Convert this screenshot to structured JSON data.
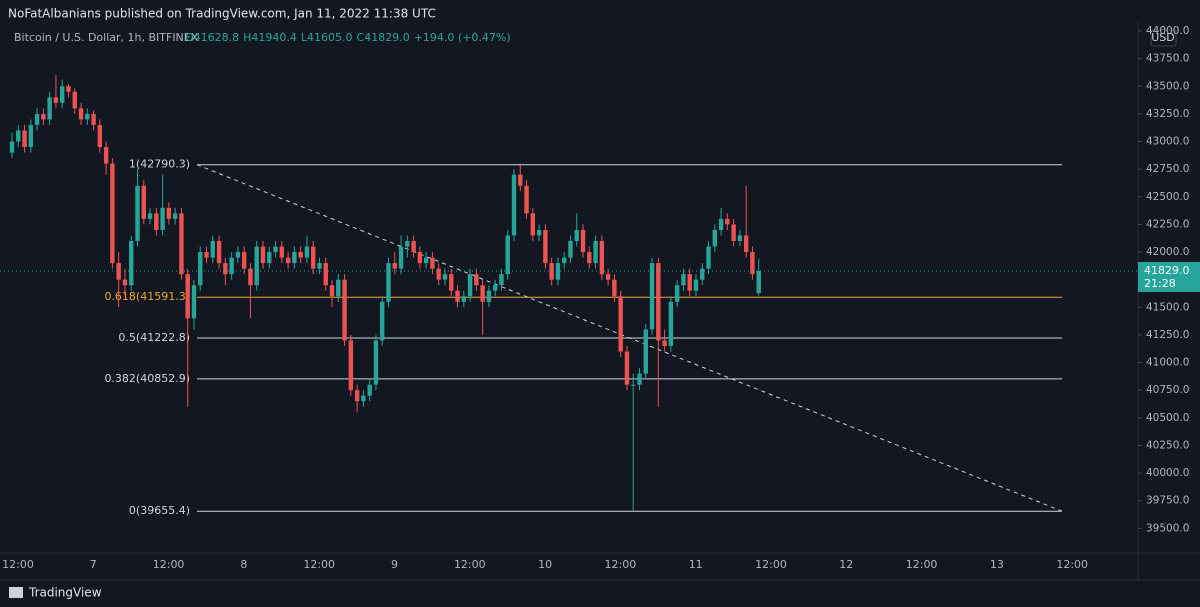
{
  "header": {
    "publisher": "NoFatAlbanians published on TradingView.com, Jan 11, 2022 11:38 UTC",
    "brand": "TradingView"
  },
  "chart_data": {
    "type": "candlestick",
    "symbol": "Bitcoin / U.S. Dollar, 1h, BITFINEX",
    "ohlc_legend": [
      "O41628.8",
      "H41940.4",
      "L41605.0",
      "C41829.0",
      "+194.0 (+0.47%)"
    ],
    "currency": "USD",
    "last_price": {
      "value": 41829,
      "label": "41829.0"
    },
    "countdown": "21:28",
    "up_color": "#26a69a",
    "down_color": "#ef5350",
    "ylim": [
      39250,
      44000
    ],
    "yticks": [
      {
        "value": 39500,
        "label": "39500.0"
      },
      {
        "value": 39750,
        "label": "39750.0"
      },
      {
        "value": 40000,
        "label": "40000.0"
      },
      {
        "value": 40250,
        "label": "40250.0"
      },
      {
        "value": 40500,
        "label": "40500.0"
      },
      {
        "value": 40750,
        "label": "40750.0"
      },
      {
        "value": 41000,
        "label": "41000.0"
      },
      {
        "value": 41250,
        "label": "41250.0"
      },
      {
        "value": 41500,
        "label": "41500.0"
      },
      {
        "value": 41750,
        "label": "41750.0"
      },
      {
        "value": 42000,
        "label": "42000.0"
      },
      {
        "value": 42250,
        "label": "42250.0"
      },
      {
        "value": 42500,
        "label": "42500.0"
      },
      {
        "value": 42750,
        "label": "42750.0"
      },
      {
        "value": 43000,
        "label": "43000.0"
      },
      {
        "value": 43250,
        "label": "43250.0"
      },
      {
        "value": 43500,
        "label": "43500.0"
      },
      {
        "value": 43750,
        "label": "43750.0"
      },
      {
        "value": 44000,
        "label": "44000.0"
      }
    ],
    "xticks": [
      "12:00",
      "7",
      "12:00",
      "8",
      "12:00",
      "9",
      "12:00",
      "10",
      "12:00",
      "11",
      "12:00",
      "12",
      "12:00",
      "13",
      "12:00"
    ],
    "fib_levels": [
      {
        "label": "1(42790.3)",
        "value": 42790.3,
        "color": "#d1d4dc"
      },
      {
        "label": "0.618(41591.3)",
        "value": 41591.3,
        "color": "#f0a830"
      },
      {
        "label": "0.5(41222.8)",
        "value": 41222.8,
        "color": "#d1d4dc"
      },
      {
        "label": "0.382(40852.9)",
        "value": 40852.9,
        "color": "#d1d4dc"
      },
      {
        "label": "0(39655.4)",
        "value": 39655.4,
        "color": "#d1d4dc"
      }
    ],
    "candles": [
      [
        42900,
        43080,
        42850,
        43000
      ],
      [
        43000,
        43150,
        42950,
        43100
      ],
      [
        43100,
        43150,
        42900,
        42950
      ],
      [
        42950,
        43200,
        42900,
        43150
      ],
      [
        43150,
        43300,
        43100,
        43250
      ],
      [
        43250,
        43300,
        43150,
        43200
      ],
      [
        43200,
        43450,
        43150,
        43400
      ],
      [
        43400,
        43600,
        43300,
        43350
      ],
      [
        43350,
        43560,
        43300,
        43500
      ],
      [
        43500,
        43520,
        43400,
        43450
      ],
      [
        43450,
        43480,
        43250,
        43300
      ],
      [
        43300,
        43350,
        43150,
        43200
      ],
      [
        43200,
        43300,
        43150,
        43250
      ],
      [
        43250,
        43280,
        43100,
        43150
      ],
      [
        43150,
        43200,
        42900,
        42950
      ],
      [
        42950,
        43000,
        42700,
        42800
      ],
      [
        42800,
        42850,
        41850,
        41900
      ],
      [
        41900,
        42000,
        41500,
        41750
      ],
      [
        41750,
        41850,
        41600,
        41700
      ],
      [
        41700,
        42150,
        41650,
        42100
      ],
      [
        42100,
        42750,
        42050,
        42600
      ],
      [
        42600,
        42650,
        42250,
        42300
      ],
      [
        42300,
        42400,
        42250,
        42350
      ],
      [
        42350,
        42400,
        42150,
        42200
      ],
      [
        42200,
        42700,
        42150,
        42400
      ],
      [
        42400,
        42450,
        42250,
        42300
      ],
      [
        42300,
        42400,
        42250,
        42350
      ],
      [
        42350,
        42400,
        41750,
        41800
      ],
      [
        41800,
        41850,
        40600,
        41400
      ],
      [
        41400,
        41750,
        41300,
        41700
      ],
      [
        41700,
        42050,
        41650,
        42000
      ],
      [
        42000,
        42050,
        41900,
        41950
      ],
      [
        41950,
        42150,
        41900,
        42100
      ],
      [
        42100,
        42150,
        41850,
        41900
      ],
      [
        41900,
        41950,
        41700,
        41800
      ],
      [
        41800,
        42000,
        41750,
        41950
      ],
      [
        41950,
        42050,
        41900,
        42000
      ],
      [
        42000,
        42050,
        41800,
        41850
      ],
      [
        41850,
        41900,
        41400,
        41700
      ],
      [
        41700,
        42100,
        41650,
        42050
      ],
      [
        42050,
        42100,
        41850,
        41900
      ],
      [
        41900,
        42050,
        41850,
        42000
      ],
      [
        42000,
        42100,
        41950,
        42050
      ],
      [
        42050,
        42100,
        41900,
        41950
      ],
      [
        41950,
        42000,
        41850,
        41900
      ],
      [
        41900,
        42050,
        41850,
        42000
      ],
      [
        42000,
        42050,
        41900,
        41950
      ],
      [
        41950,
        42150,
        41900,
        42050
      ],
      [
        42050,
        42100,
        41800,
        41850
      ],
      [
        41850,
        41950,
        41800,
        41900
      ],
      [
        41900,
        41950,
        41650,
        41700
      ],
      [
        41700,
        41750,
        41500,
        41600
      ],
      [
        41600,
        41800,
        41550,
        41750
      ],
      [
        41750,
        41800,
        41150,
        41200
      ],
      [
        41200,
        41250,
        40700,
        40750
      ],
      [
        40750,
        40800,
        40550,
        40650
      ],
      [
        40650,
        40750,
        40600,
        40700
      ],
      [
        40700,
        40850,
        40650,
        40800
      ],
      [
        40800,
        41250,
        40750,
        41200
      ],
      [
        41200,
        41600,
        41150,
        41550
      ],
      [
        41550,
        41950,
        41500,
        41900
      ],
      [
        41900,
        42000,
        41800,
        41850
      ],
      [
        41850,
        42150,
        41800,
        42050
      ],
      [
        42050,
        42150,
        41950,
        42100
      ],
      [
        42100,
        42150,
        41950,
        42000
      ],
      [
        42000,
        42050,
        41850,
        41900
      ],
      [
        41900,
        42000,
        41850,
        41950
      ],
      [
        41950,
        42000,
        41800,
        41850
      ],
      [
        41850,
        41900,
        41700,
        41750
      ],
      [
        41750,
        41850,
        41700,
        41800
      ],
      [
        41800,
        41850,
        41600,
        41650
      ],
      [
        41650,
        41700,
        41500,
        41550
      ],
      [
        41550,
        41650,
        41500,
        41600
      ],
      [
        41600,
        41850,
        41550,
        41800
      ],
      [
        41800,
        41850,
        41650,
        41700
      ],
      [
        41700,
        41750,
        41250,
        41550
      ],
      [
        41550,
        41700,
        41500,
        41650
      ],
      [
        41650,
        41750,
        41600,
        41700
      ],
      [
        41700,
        41850,
        41650,
        41800
      ],
      [
        41800,
        42200,
        41750,
        42150
      ],
      [
        42150,
        42750,
        42100,
        42700
      ],
      [
        42700,
        42800,
        42550,
        42600
      ],
      [
        42600,
        42650,
        42300,
        42350
      ],
      [
        42350,
        42400,
        42100,
        42150
      ],
      [
        42150,
        42250,
        42100,
        42200
      ],
      [
        42200,
        42250,
        41850,
        41900
      ],
      [
        41900,
        41950,
        41700,
        41750
      ],
      [
        41750,
        41950,
        41700,
        41900
      ],
      [
        41900,
        42000,
        41850,
        41950
      ],
      [
        41950,
        42150,
        41900,
        42100
      ],
      [
        42100,
        42350,
        42050,
        42200
      ],
      [
        42200,
        42250,
        41950,
        42000
      ],
      [
        42000,
        42050,
        41850,
        41900
      ],
      [
        41900,
        42150,
        41850,
        42100
      ],
      [
        42100,
        42150,
        41750,
        41800
      ],
      [
        41800,
        41850,
        41700,
        41750
      ],
      [
        41750,
        41800,
        41550,
        41600
      ],
      [
        41600,
        41650,
        41050,
        41100
      ],
      [
        41100,
        41150,
        40750,
        40800
      ],
      [
        40800,
        40900,
        39660,
        40800
      ],
      [
        40800,
        40950,
        40750,
        40900
      ],
      [
        40900,
        41350,
        40850,
        41300
      ],
      [
        41300,
        41950,
        41250,
        41900
      ],
      [
        41900,
        41950,
        40600,
        41200
      ],
      [
        41200,
        41300,
        41100,
        41150
      ],
      [
        41150,
        41600,
        41100,
        41550
      ],
      [
        41550,
        41750,
        41500,
        41700
      ],
      [
        41700,
        41850,
        41650,
        41800
      ],
      [
        41800,
        41850,
        41600,
        41650
      ],
      [
        41650,
        41800,
        41600,
        41750
      ],
      [
        41750,
        41900,
        41700,
        41850
      ],
      [
        41850,
        42100,
        41800,
        42050
      ],
      [
        42050,
        42250,
        42000,
        42200
      ],
      [
        42200,
        42400,
        42150,
        42300
      ],
      [
        42300,
        42350,
        42200,
        42250
      ],
      [
        42250,
        42300,
        42050,
        42100
      ],
      [
        42100,
        42200,
        42050,
        42150
      ],
      [
        42150,
        42600,
        41950,
        42000
      ],
      [
        42000,
        42050,
        41750,
        41800
      ],
      [
        41628.8,
        41940.4,
        41605,
        41829
      ]
    ],
    "trend_line": {
      "start": 42790.3,
      "end": 39655.4
    }
  }
}
